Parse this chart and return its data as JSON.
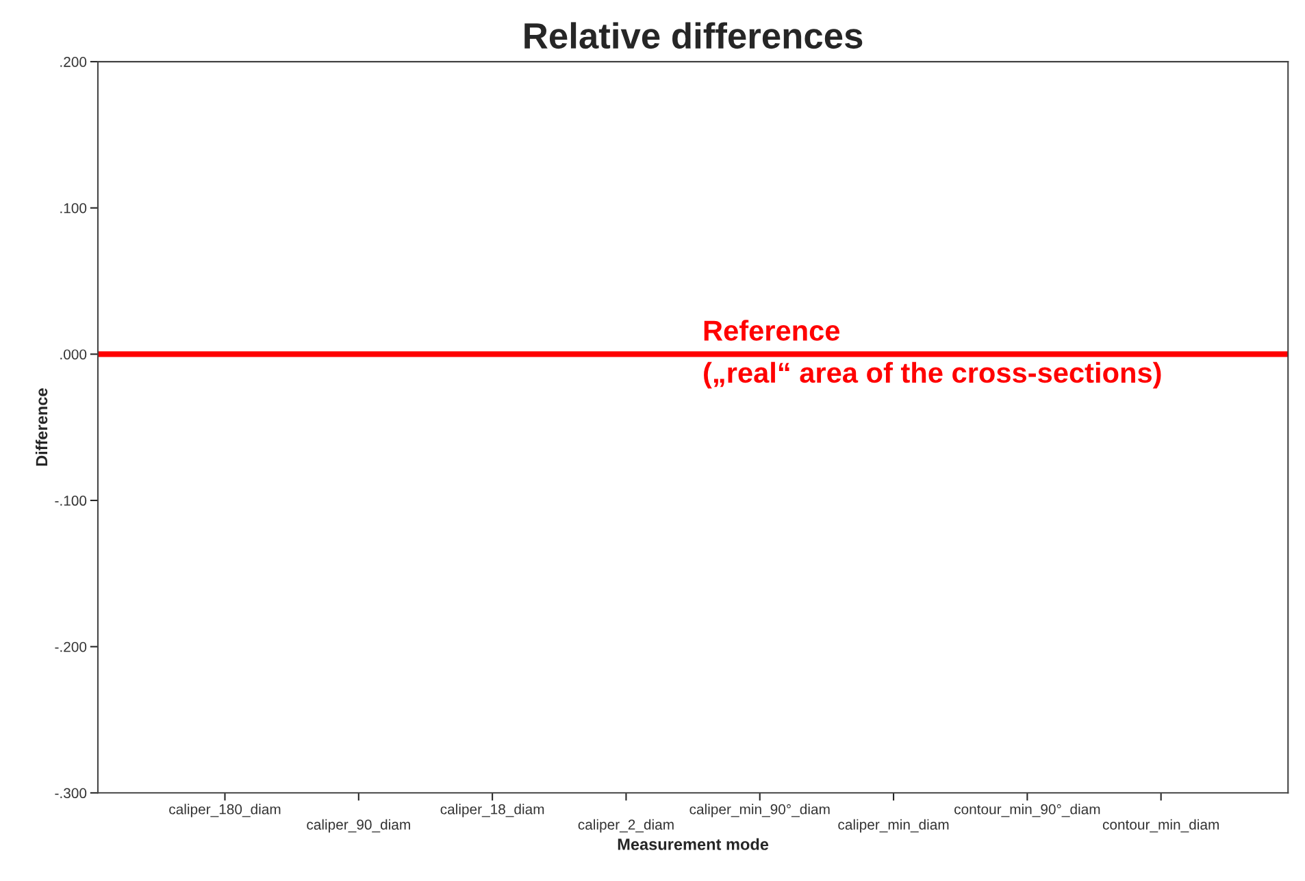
{
  "chart_data": {
    "type": "box",
    "title": "Relative differences",
    "xlabel": "Measurement mode",
    "ylabel": "Difference",
    "categories": [
      "caliper_180_diam",
      "caliper_90_diam",
      "caliper_18_diam",
      "caliper_2_diam",
      "caliper_min_90°_diam",
      "caliper_min_diam",
      "contour_min_90°_diam",
      "contour_min_diam"
    ],
    "boxes": [
      null,
      null,
      null,
      null,
      null,
      null,
      null,
      null
    ],
    "ylim": [
      -0.3,
      0.2
    ],
    "yticks": [
      {
        "value": -0.3,
        "label": "-.300"
      },
      {
        "value": -0.2,
        "label": "-.200"
      },
      {
        "value": -0.1,
        "label": "-.100"
      },
      {
        "value": 0,
        "label": ".000"
      },
      {
        "value": 0.1,
        "label": ".100"
      },
      {
        "value": 0.2,
        "label": ".200"
      }
    ],
    "ref_lines": [
      {
        "axis": "y",
        "value": 0,
        "label": "Reference\n(„real“ area of the cross-sections)",
        "color": "#ff0000"
      }
    ],
    "grid": false
  }
}
